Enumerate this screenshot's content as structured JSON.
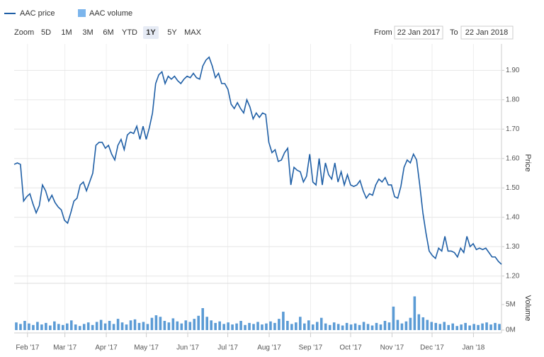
{
  "legend": {
    "price": "AAC price",
    "volume": "AAC volume"
  },
  "zoom": {
    "label": "Zoom",
    "buttons": [
      "5D",
      "1M",
      "3M",
      "6M",
      "YTD",
      "1Y",
      "5Y",
      "MAX"
    ],
    "selected": "1Y"
  },
  "range": {
    "from_label": "From",
    "from": "22 Jan 2017",
    "to_label": "To",
    "to": "22 Jan 2018"
  },
  "chart_data": [
    {
      "type": "line",
      "ylabel": "Price",
      "grid": true,
      "ylim": [
        1.18,
        1.99
      ],
      "yticks": [
        {
          "value": 1.2,
          "label": "1.20"
        },
        {
          "value": 1.3,
          "label": "1.30"
        },
        {
          "value": 1.4,
          "label": "1.40"
        },
        {
          "value": 1.5,
          "label": "1.50"
        },
        {
          "value": 1.6,
          "label": "1.60"
        },
        {
          "value": 1.7,
          "label": "1.70"
        },
        {
          "value": 1.8,
          "label": "1.80"
        },
        {
          "value": 1.9,
          "label": "1.90"
        }
      ],
      "series": [
        {
          "name": "AAC price",
          "color": "#1f5fa6",
          "values": [
            1.58,
            1.585,
            1.58,
            1.455,
            1.47,
            1.48,
            1.445,
            1.415,
            1.44,
            1.51,
            1.49,
            1.455,
            1.475,
            1.45,
            1.435,
            1.425,
            1.39,
            1.38,
            1.415,
            1.455,
            1.465,
            1.51,
            1.52,
            1.49,
            1.52,
            1.55,
            1.645,
            1.655,
            1.655,
            1.635,
            1.645,
            1.615,
            1.595,
            1.645,
            1.665,
            1.63,
            1.68,
            1.69,
            1.685,
            1.71,
            1.665,
            1.71,
            1.665,
            1.705,
            1.755,
            1.855,
            1.885,
            1.895,
            1.855,
            1.88,
            1.87,
            1.88,
            1.865,
            1.855,
            1.87,
            1.88,
            1.875,
            1.89,
            1.875,
            1.87,
            1.915,
            1.935,
            1.945,
            1.915,
            1.875,
            1.89,
            1.855,
            1.855,
            1.835,
            1.785,
            1.77,
            1.79,
            1.77,
            1.755,
            1.8,
            1.775,
            1.735,
            1.755,
            1.74,
            1.755,
            1.75,
            1.655,
            1.62,
            1.63,
            1.59,
            1.595,
            1.62,
            1.635,
            1.51,
            1.57,
            1.56,
            1.555,
            1.52,
            1.54,
            1.615,
            1.52,
            1.51,
            1.6,
            1.51,
            1.585,
            1.545,
            1.53,
            1.585,
            1.52,
            1.555,
            1.51,
            1.545,
            1.51,
            1.505,
            1.51,
            1.525,
            1.49,
            1.465,
            1.48,
            1.475,
            1.51,
            1.53,
            1.52,
            1.535,
            1.51,
            1.51,
            1.47,
            1.465,
            1.505,
            1.57,
            1.595,
            1.585,
            1.615,
            1.595,
            1.51,
            1.415,
            1.345,
            1.285,
            1.27,
            1.26,
            1.295,
            1.285,
            1.335,
            1.285,
            1.285,
            1.28,
            1.265,
            1.295,
            1.28,
            1.335,
            1.3,
            1.31,
            1.29,
            1.295,
            1.29,
            1.295,
            1.28,
            1.265,
            1.265,
            1.25,
            1.24
          ]
        }
      ]
    },
    {
      "type": "bar",
      "ylabel": "Volume",
      "ylim": [
        0,
        8600000
      ],
      "yticks": [
        {
          "value": 0,
          "label": "0M"
        },
        {
          "value": 5000000,
          "label": "5M"
        }
      ],
      "xlim": [
        0,
        365
      ],
      "xticks": [
        {
          "value": 10,
          "label": "Feb '17"
        },
        {
          "value": 38,
          "label": "Mar '17"
        },
        {
          "value": 69,
          "label": "Apr '17"
        },
        {
          "value": 99,
          "label": "May '17"
        },
        {
          "value": 130,
          "label": "Jun '17"
        },
        {
          "value": 160,
          "label": "Jul '17"
        },
        {
          "value": 191,
          "label": "Aug '17"
        },
        {
          "value": 222,
          "label": "Sep '17"
        },
        {
          "value": 252,
          "label": "Oct '17"
        },
        {
          "value": 283,
          "label": "Nov '17"
        },
        {
          "value": 313,
          "label": "Dec '17"
        },
        {
          "value": 344,
          "label": "Jan '18"
        }
      ],
      "series": [
        {
          "name": "AAC volume",
          "color": "#5b9bd5",
          "values": [
            1500000,
            1200000,
            1800000,
            1300000,
            1000000,
            1600000,
            1100000,
            1400000,
            900000,
            1700000,
            1200000,
            1000000,
            1300000,
            1900000,
            1100000,
            800000,
            1200000,
            1500000,
            1000000,
            1600000,
            2000000,
            1300000,
            1800000,
            1200000,
            2200000,
            1500000,
            1100000,
            1900000,
            2100000,
            1400000,
            1600000,
            1200000,
            2400000,
            2900000,
            2600000,
            1800000,
            1500000,
            2300000,
            1700000,
            1300000,
            1900000,
            1600000,
            2200000,
            2800000,
            4300000,
            2600000,
            1900000,
            1400000,
            1700000,
            1200000,
            1500000,
            1100000,
            1300000,
            1800000,
            1000000,
            1400000,
            1200000,
            1600000,
            1100000,
            1300000,
            1700000,
            1400000,
            2200000,
            3600000,
            1800000,
            1200000,
            1500000,
            2600000,
            1300000,
            1900000,
            1100000,
            1600000,
            2400000,
            1300000,
            1000000,
            1500000,
            1200000,
            900000,
            1400000,
            1100000,
            1300000,
            1000000,
            1600000,
            1200000,
            900000,
            1400000,
            1100000,
            1800000,
            1500000,
            4600000,
            2000000,
            1300000,
            1700000,
            2400000,
            6600000,
            3100000,
            2500000,
            2000000,
            1600000,
            1400000,
            1200000,
            1600000,
            1000000,
            1300000,
            800000,
            1100000,
            1400000,
            900000,
            1200000,
            1000000,
            1300000,
            1500000,
            1100000,
            1400000,
            1200000
          ]
        }
      ]
    }
  ]
}
